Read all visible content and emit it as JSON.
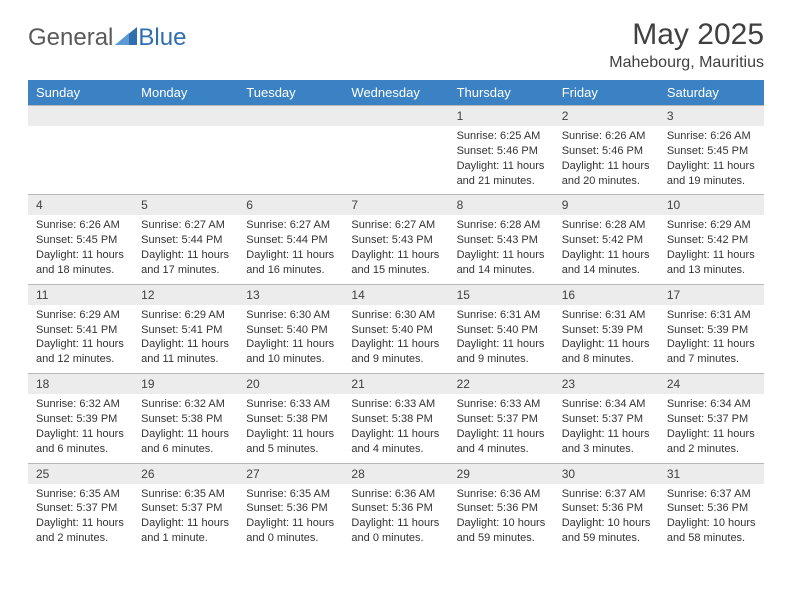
{
  "logo": {
    "text1": "General",
    "text2": "Blue",
    "color_gray": "#6a6a6a",
    "color_blue": "#2f6fb0"
  },
  "title": "May 2025",
  "location": "Mahebourg, Mauritius",
  "colors": {
    "header_bg": "#3b82c4",
    "header_fg": "#ffffff",
    "daynum_bg": "#ececec",
    "border": "#b8b8b8",
    "text": "#333333"
  },
  "weekdays": [
    "Sunday",
    "Monday",
    "Tuesday",
    "Wednesday",
    "Thursday",
    "Friday",
    "Saturday"
  ],
  "weeks": [
    [
      null,
      null,
      null,
      null,
      {
        "d": "1",
        "sr": "6:25 AM",
        "ss": "5:46 PM",
        "dl": "11 hours and 21 minutes."
      },
      {
        "d": "2",
        "sr": "6:26 AM",
        "ss": "5:46 PM",
        "dl": "11 hours and 20 minutes."
      },
      {
        "d": "3",
        "sr": "6:26 AM",
        "ss": "5:45 PM",
        "dl": "11 hours and 19 minutes."
      }
    ],
    [
      {
        "d": "4",
        "sr": "6:26 AM",
        "ss": "5:45 PM",
        "dl": "11 hours and 18 minutes."
      },
      {
        "d": "5",
        "sr": "6:27 AM",
        "ss": "5:44 PM",
        "dl": "11 hours and 17 minutes."
      },
      {
        "d": "6",
        "sr": "6:27 AM",
        "ss": "5:44 PM",
        "dl": "11 hours and 16 minutes."
      },
      {
        "d": "7",
        "sr": "6:27 AM",
        "ss": "5:43 PM",
        "dl": "11 hours and 15 minutes."
      },
      {
        "d": "8",
        "sr": "6:28 AM",
        "ss": "5:43 PM",
        "dl": "11 hours and 14 minutes."
      },
      {
        "d": "9",
        "sr": "6:28 AM",
        "ss": "5:42 PM",
        "dl": "11 hours and 14 minutes."
      },
      {
        "d": "10",
        "sr": "6:29 AM",
        "ss": "5:42 PM",
        "dl": "11 hours and 13 minutes."
      }
    ],
    [
      {
        "d": "11",
        "sr": "6:29 AM",
        "ss": "5:41 PM",
        "dl": "11 hours and 12 minutes."
      },
      {
        "d": "12",
        "sr": "6:29 AM",
        "ss": "5:41 PM",
        "dl": "11 hours and 11 minutes."
      },
      {
        "d": "13",
        "sr": "6:30 AM",
        "ss": "5:40 PM",
        "dl": "11 hours and 10 minutes."
      },
      {
        "d": "14",
        "sr": "6:30 AM",
        "ss": "5:40 PM",
        "dl": "11 hours and 9 minutes."
      },
      {
        "d": "15",
        "sr": "6:31 AM",
        "ss": "5:40 PM",
        "dl": "11 hours and 9 minutes."
      },
      {
        "d": "16",
        "sr": "6:31 AM",
        "ss": "5:39 PM",
        "dl": "11 hours and 8 minutes."
      },
      {
        "d": "17",
        "sr": "6:31 AM",
        "ss": "5:39 PM",
        "dl": "11 hours and 7 minutes."
      }
    ],
    [
      {
        "d": "18",
        "sr": "6:32 AM",
        "ss": "5:39 PM",
        "dl": "11 hours and 6 minutes."
      },
      {
        "d": "19",
        "sr": "6:32 AM",
        "ss": "5:38 PM",
        "dl": "11 hours and 6 minutes."
      },
      {
        "d": "20",
        "sr": "6:33 AM",
        "ss": "5:38 PM",
        "dl": "11 hours and 5 minutes."
      },
      {
        "d": "21",
        "sr": "6:33 AM",
        "ss": "5:38 PM",
        "dl": "11 hours and 4 minutes."
      },
      {
        "d": "22",
        "sr": "6:33 AM",
        "ss": "5:37 PM",
        "dl": "11 hours and 4 minutes."
      },
      {
        "d": "23",
        "sr": "6:34 AM",
        "ss": "5:37 PM",
        "dl": "11 hours and 3 minutes."
      },
      {
        "d": "24",
        "sr": "6:34 AM",
        "ss": "5:37 PM",
        "dl": "11 hours and 2 minutes."
      }
    ],
    [
      {
        "d": "25",
        "sr": "6:35 AM",
        "ss": "5:37 PM",
        "dl": "11 hours and 2 minutes."
      },
      {
        "d": "26",
        "sr": "6:35 AM",
        "ss": "5:37 PM",
        "dl": "11 hours and 1 minute."
      },
      {
        "d": "27",
        "sr": "6:35 AM",
        "ss": "5:36 PM",
        "dl": "11 hours and 0 minutes."
      },
      {
        "d": "28",
        "sr": "6:36 AM",
        "ss": "5:36 PM",
        "dl": "11 hours and 0 minutes."
      },
      {
        "d": "29",
        "sr": "6:36 AM",
        "ss": "5:36 PM",
        "dl": "10 hours and 59 minutes."
      },
      {
        "d": "30",
        "sr": "6:37 AM",
        "ss": "5:36 PM",
        "dl": "10 hours and 59 minutes."
      },
      {
        "d": "31",
        "sr": "6:37 AM",
        "ss": "5:36 PM",
        "dl": "10 hours and 58 minutes."
      }
    ]
  ],
  "labels": {
    "sunrise": "Sunrise:",
    "sunset": "Sunset:",
    "daylight": "Daylight:"
  }
}
